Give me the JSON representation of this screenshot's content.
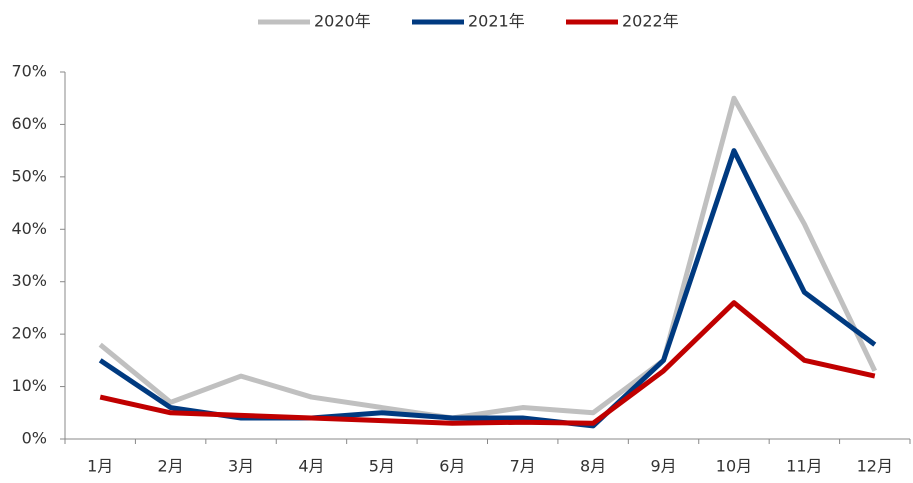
{
  "chart_data": {
    "type": "line",
    "categories": [
      "1月",
      "2月",
      "3月",
      "4月",
      "5月",
      "6月",
      "7月",
      "8月",
      "9月",
      "10月",
      "11月",
      "12月"
    ],
    "series": [
      {
        "name": "2020年",
        "color": "#c0c0c0",
        "values": [
          18,
          7,
          12,
          8,
          6,
          4,
          6,
          5,
          15,
          65,
          41,
          13
        ]
      },
      {
        "name": "2021年",
        "color": "#003a80",
        "values": [
          15,
          6,
          4,
          4,
          5,
          4,
          4,
          2.5,
          15,
          55,
          28,
          18
        ]
      },
      {
        "name": "2022年",
        "color": "#c00000",
        "values": [
          8,
          5,
          4.5,
          4,
          3.5,
          3,
          3.2,
          3,
          13,
          26,
          15,
          12
        ]
      }
    ],
    "ylim": [
      0,
      70
    ],
    "yticks": [
      {
        "value": 0,
        "label": "0%"
      },
      {
        "value": 10,
        "label": "10%"
      },
      {
        "value": 20,
        "label": "20%"
      },
      {
        "value": 30,
        "label": "30%"
      },
      {
        "value": 40,
        "label": "40%"
      },
      {
        "value": 50,
        "label": "50%"
      },
      {
        "value": 60,
        "label": "60%"
      },
      {
        "value": 70,
        "label": "70%"
      }
    ],
    "grid": false,
    "legend": "top"
  }
}
